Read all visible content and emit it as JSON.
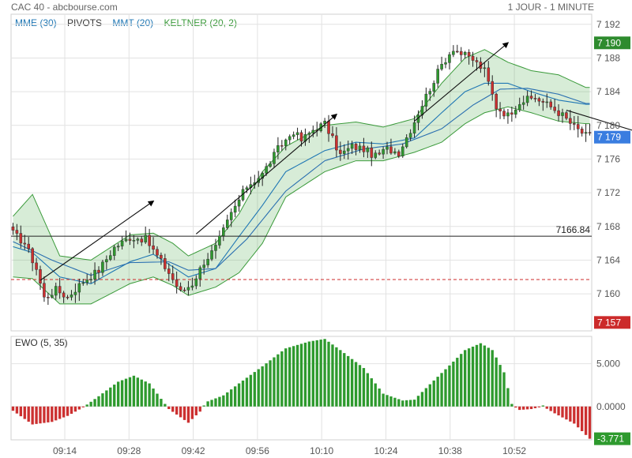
{
  "header": {
    "title": "CAC 40 - abcbourse.com",
    "period": "1 JOUR - 1 MINUTE"
  },
  "legend": [
    {
      "label": "MME (30)",
      "color": "#1f77b4"
    },
    {
      "label": "PIVOTS",
      "color": "#333333"
    },
    {
      "label": "MMT (20)",
      "color": "#1f77b4"
    },
    {
      "label": "KELTNER (20, 2)",
      "color": "#3a9a3a"
    }
  ],
  "chart_data": [
    {
      "type": "candlestick",
      "title": "CAC 40",
      "x_ticks": [
        "09:14",
        "09:28",
        "09:42",
        "09:56",
        "10:10",
        "10:24",
        "10:38",
        "10:52"
      ],
      "y_ticks": [
        "7 160",
        "7 164",
        "7 168",
        "7 172",
        "7 176",
        "7 180",
        "7 184",
        "7 188",
        "7 192"
      ],
      "ylim": [
        7155.6,
        7193.2
      ],
      "pivot_line": {
        "value": 7166.84,
        "label": "7166.84"
      },
      "dashed_line": {
        "value": 7161.7
      },
      "price_tags": [
        {
          "label": "7 190",
          "value": 7189.8,
          "color": "#2e8b2e"
        },
        {
          "label": "7 179",
          "value": 7178.6,
          "color": "#3a7de0"
        },
        {
          "label": "7 157",
          "value": 7156.6,
          "color": "#cc2a2a"
        }
      ],
      "keyframes_close": [
        [
          0,
          7167.2
        ],
        [
          3,
          7166
        ],
        [
          6,
          7163
        ],
        [
          8,
          7159.5
        ],
        [
          11,
          7160.5
        ],
        [
          14,
          7159.6
        ],
        [
          18,
          7161.5
        ],
        [
          22,
          7162.8
        ],
        [
          26,
          7165.5
        ],
        [
          30,
          7166.7
        ],
        [
          34,
          7166.5
        ],
        [
          37,
          7164.5
        ],
        [
          40,
          7162.5
        ],
        [
          43,
          7160.2
        ],
        [
          46,
          7161.2
        ],
        [
          49,
          7163.8
        ],
        [
          52,
          7165.5
        ],
        [
          56,
          7169.5
        ],
        [
          60,
          7172.8
        ],
        [
          64,
          7174.2
        ],
        [
          68,
          7177.2
        ],
        [
          72,
          7179.3
        ],
        [
          74,
          7178.2
        ],
        [
          77,
          7179.5
        ],
        [
          80,
          7180.2
        ],
        [
          84,
          7176.5
        ],
        [
          87,
          7177.5
        ],
        [
          90,
          7177.2
        ],
        [
          93,
          7176.3
        ],
        [
          96,
          7177.2
        ],
        [
          99,
          7176.8
        ],
        [
          102,
          7179.5
        ],
        [
          106,
          7183.5
        ],
        [
          110,
          7187.2
        ],
        [
          113,
          7189.2
        ],
        [
          115,
          7188.5
        ],
        [
          118,
          7187.8
        ],
        [
          121,
          7186.5
        ],
        [
          124,
          7182.2
        ],
        [
          127,
          7181.2
        ],
        [
          130,
          7182.8
        ],
        [
          134,
          7183.3
        ],
        [
          138,
          7182.2
        ],
        [
          141,
          7181.2
        ],
        [
          144,
          7179.8
        ],
        [
          147,
          7178.8
        ]
      ],
      "keltner_keyframes": [
        [
          0,
          7165.6,
          7169.2,
          7162.0
        ],
        [
          5,
          7164.9,
          7171.8,
          7161.8
        ],
        [
          12,
          7162.0,
          7164.5,
          7158.8
        ],
        [
          20,
          7161.2,
          7164.0,
          7158.8
        ],
        [
          30,
          7163.8,
          7167.0,
          7161.2
        ],
        [
          36,
          7164.7,
          7167.2,
          7162.0
        ],
        [
          41,
          7163.2,
          7166.0,
          7161.0
        ],
        [
          45,
          7162.0,
          7164.5,
          7159.8
        ],
        [
          52,
          7163.0,
          7166.0,
          7160.8
        ],
        [
          58,
          7166.8,
          7169.5,
          7162.5
        ],
        [
          64,
          7170.5,
          7174.5,
          7166.0
        ],
        [
          70,
          7174.5,
          7177.5,
          7171.5
        ],
        [
          80,
          7177.0,
          7180.0,
          7174.5
        ],
        [
          88,
          7178.0,
          7180.4,
          7175.8
        ],
        [
          95,
          7177.8,
          7179.8,
          7175.8
        ],
        [
          103,
          7178.5,
          7180.8,
          7176.8
        ],
        [
          110,
          7181.5,
          7185.0,
          7178.0
        ],
        [
          116,
          7184.0,
          7188.0,
          7180.2
        ],
        [
          121,
          7185.0,
          7189.0,
          7181.5
        ],
        [
          127,
          7185.0,
          7187.5,
          7182.2
        ],
        [
          133,
          7184.0,
          7186.5,
          7181.5
        ],
        [
          140,
          7183.0,
          7186.0,
          7180.5
        ],
        [
          147,
          7182.5,
          7184.5,
          7180.2
        ]
      ],
      "mme_keyframes": [
        [
          0,
          7166.2
        ],
        [
          10,
          7164
        ],
        [
          20,
          7162.2
        ],
        [
          30,
          7163.7
        ],
        [
          40,
          7163.8
        ],
        [
          45,
          7162.8
        ],
        [
          52,
          7163
        ],
        [
          60,
          7166.5
        ],
        [
          70,
          7172.2
        ],
        [
          80,
          7175.8
        ],
        [
          90,
          7177.2
        ],
        [
          100,
          7177.8
        ],
        [
          110,
          7179.6
        ],
        [
          118,
          7182.4
        ],
        [
          125,
          7184.3
        ],
        [
          132,
          7184.4
        ],
        [
          140,
          7183.7
        ],
        [
          147,
          7182.6
        ]
      ],
      "trend_arrows": [
        [
          [
            7,
            7161.6
          ],
          [
            36,
            7171.0
          ]
        ],
        [
          [
            47,
            7167.1
          ],
          [
            83,
            7181.3
          ]
        ],
        [
          [
            103,
            7180.5
          ],
          [
            127,
            7189.8
          ]
        ],
        [
          [
            142,
            7181.8
          ],
          [
            174,
            7177.3
          ]
        ]
      ]
    },
    {
      "type": "bar",
      "title": "EWO (5, 35)",
      "y_ticks": [
        "5.000",
        "0.0000"
      ],
      "ylim": [
        -3.9,
        8.2
      ],
      "last_value": {
        "label": "-3.771",
        "value": -3.771
      },
      "values_keyframes": [
        [
          0,
          -0.5
        ],
        [
          5,
          -2.1
        ],
        [
          10,
          -1.8
        ],
        [
          14,
          -1.1
        ],
        [
          18,
          -0.1
        ],
        [
          22,
          1.2
        ],
        [
          27,
          2.9
        ],
        [
          31,
          3.6
        ],
        [
          35,
          2.7
        ],
        [
          38,
          0.9
        ],
        [
          40,
          -0.3
        ],
        [
          45,
          -1.9
        ],
        [
          48,
          -0.6
        ],
        [
          50,
          0.6
        ],
        [
          54,
          1.3
        ],
        [
          58,
          2.7
        ],
        [
          64,
          4.7
        ],
        [
          70,
          6.8
        ],
        [
          76,
          7.6
        ],
        [
          80,
          7.9
        ],
        [
          84,
          6.6
        ],
        [
          90,
          4.5
        ],
        [
          95,
          1.5
        ],
        [
          100,
          0.7
        ],
        [
          103,
          0.8
        ],
        [
          107,
          2.6
        ],
        [
          112,
          4.8
        ],
        [
          116,
          6.6
        ],
        [
          120,
          7.4
        ],
        [
          123,
          6.6
        ],
        [
          126,
          4.0
        ],
        [
          128,
          0.3
        ],
        [
          130,
          -0.4
        ],
        [
          133,
          -0.3
        ],
        [
          136,
          0.0
        ],
        [
          139,
          -0.8
        ],
        [
          144,
          -2.0
        ],
        [
          148,
          -3.771
        ]
      ]
    }
  ]
}
